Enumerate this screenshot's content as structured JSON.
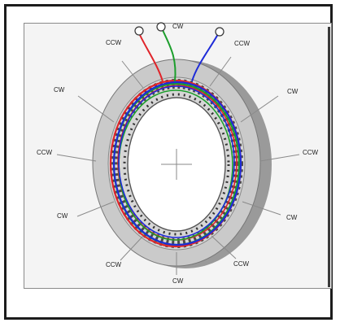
{
  "diagram": {
    "labels": {
      "top": "CW",
      "top_left": "CCW",
      "top_right": "CCW",
      "upper_left": "CW",
      "upper_right": "CW",
      "left": "CCW",
      "right": "CCW",
      "lower_left": "CW",
      "lower_right": "CW",
      "bottom_left": "CCW",
      "bottom_right": "CCW",
      "bottom": "CW"
    },
    "colors": {
      "phase_a": "#e0242a",
      "phase_b": "#1c9e2c",
      "phase_c": "#1d2bd8",
      "ring_face": "#c9c9c9",
      "ring_side": "#9a9a9a",
      "teeth": "#555555"
    }
  }
}
